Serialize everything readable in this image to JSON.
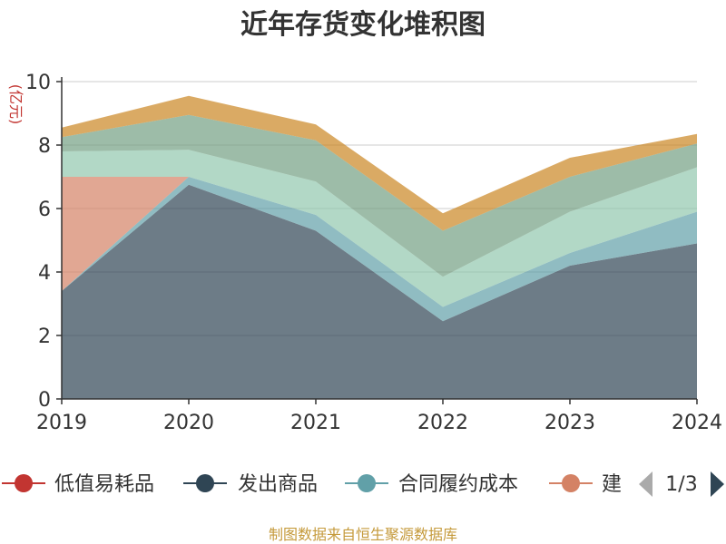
{
  "chart_data": {
    "type": "area",
    "stacked": true,
    "title": "近年存货变化堆积图",
    "ylabel": "(亿元)",
    "categories": [
      "2019",
      "2020",
      "2021",
      "2022",
      "2023",
      "2024"
    ],
    "yticks": [
      "0",
      "2",
      "4",
      "6",
      "8",
      "10"
    ],
    "ylim": [
      0,
      10
    ],
    "grid": true,
    "series": [
      {
        "name": "发出商品",
        "color": "#2f4554",
        "opacity": 0.7,
        "values": [
          3.4,
          6.75,
          5.3,
          2.45,
          4.2,
          4.9
        ]
      },
      {
        "name": "合同履约成本",
        "color": "#61a0a8",
        "opacity": 0.7,
        "values": [
          0.0,
          0.25,
          0.5,
          0.45,
          0.4,
          1.0
        ]
      },
      {
        "name": "建造合同形成的已完工未结算资产",
        "color": "#d48265",
        "opacity": 0.7,
        "values": [
          3.6,
          0.0,
          0.0,
          0.0,
          0.0,
          0.0
        ]
      },
      {
        "name": "",
        "color": "#91c7ae",
        "opacity": 0.7,
        "values": [
          0.8,
          0.85,
          1.05,
          0.95,
          1.3,
          1.4
        ]
      },
      {
        "name": "",
        "color": "#749f83",
        "opacity": 0.7,
        "values": [
          0.45,
          1.1,
          1.3,
          1.45,
          1.1,
          0.75
        ]
      },
      {
        "name": "",
        "color": "#ca8622",
        "opacity": 0.7,
        "values": [
          0.3,
          0.6,
          0.5,
          0.55,
          0.6,
          0.3
        ]
      }
    ],
    "legend": {
      "placement": "bottom",
      "items": [
        {
          "label": "低值易耗品",
          "color": "#c23531"
        },
        {
          "label": "发出商品",
          "color": "#2f4554"
        },
        {
          "label": "合同履约成本",
          "color": "#61a0a8"
        },
        {
          "label": "建",
          "color": "#d48265"
        }
      ],
      "page": "1/3"
    }
  },
  "source": "制图数据来自恒生聚源数据库"
}
